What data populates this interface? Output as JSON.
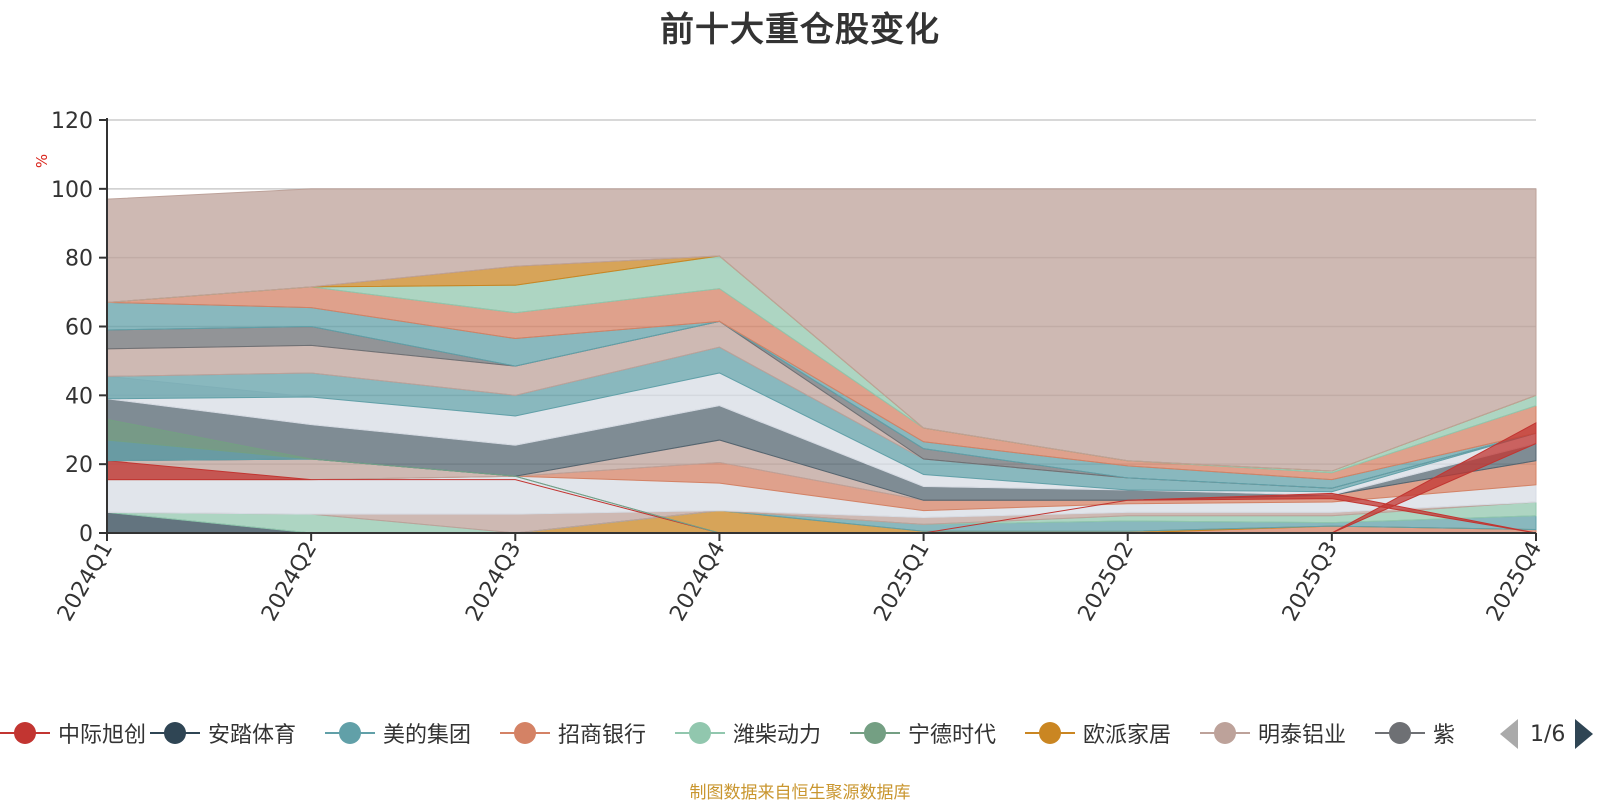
{
  "chart_data": {
    "type": "area",
    "title": "前十大重仓股变化",
    "ylabel": "%",
    "xlabel": "",
    "ylim": [
      0,
      120
    ],
    "yticks": [
      0,
      20,
      40,
      60,
      80,
      100,
      120
    ],
    "categories": [
      "2024Q1",
      "2024Q2",
      "2024Q3",
      "2024Q4",
      "2025Q1",
      "2025Q2",
      "2025Q3",
      "2025Q4"
    ],
    "bands": [
      {
        "color": "#2f4554",
        "lower": [
          0,
          0,
          0,
          0,
          0,
          0,
          0,
          0
        ],
        "upper": [
          6,
          0,
          0,
          0,
          0,
          0,
          0,
          0
        ]
      },
      {
        "color": "#91c7ae",
        "lower": [
          6,
          0,
          0,
          0,
          0,
          0,
          0,
          0
        ],
        "upper": [
          6,
          5.5,
          0,
          0,
          0,
          0,
          0,
          0
        ]
      },
      {
        "color": "#d48265",
        "lower": [
          0,
          0,
          0,
          0,
          0,
          0,
          0,
          0
        ],
        "upper": [
          0,
          0,
          0,
          0,
          0,
          0,
          2,
          1
        ]
      },
      {
        "color": "#ca8622",
        "lower": [
          0,
          0,
          0,
          0,
          0,
          0,
          2,
          1
        ],
        "upper": [
          0,
          0,
          0,
          6.5,
          0.5,
          0.5,
          2,
          1
        ]
      },
      {
        "color": "#61a0a8",
        "lower": [
          0,
          0,
          0,
          6.5,
          0.5,
          0.5,
          2,
          1
        ],
        "upper": [
          0,
          0,
          0,
          6.5,
          2.5,
          3.5,
          3,
          5
        ]
      },
      {
        "color": "#91c7ae",
        "lower": [
          0,
          0,
          0,
          6.5,
          2.5,
          3.5,
          3,
          5
        ],
        "upper": [
          0,
          0,
          0,
          6.5,
          2.5,
          5,
          5,
          9
        ]
      },
      {
        "color": "#bda29a",
        "lower": [
          6,
          5.5,
          0,
          6.5,
          2.5,
          5,
          5,
          9
        ],
        "upper": [
          6,
          5.5,
          5.5,
          6.5,
          4.5,
          6,
          6,
          9
        ]
      },
      {
        "color": "#d7dce4",
        "lower": [
          6,
          5.5,
          5.5,
          6.5,
          4.5,
          6,
          6,
          9
        ],
        "upper": [
          15.5,
          15.5,
          16.5,
          14.5,
          6.5,
          8.5,
          9,
          14
        ]
      },
      {
        "color": "#d48265",
        "lower": [
          15.5,
          15.5,
          16.5,
          14.5,
          6.5,
          8.5,
          9,
          14
        ],
        "upper": [
          15.5,
          15.5,
          16.5,
          20.5,
          9.5,
          9.5,
          11,
          21
        ]
      },
      {
        "color": "#bda29a",
        "lower": [
          15.5,
          15.5,
          16.5,
          20.5,
          9.5,
          9.5,
          11,
          21
        ],
        "upper": [
          21,
          21.5,
          16.5,
          27,
          9.5,
          9.5,
          11,
          21
        ]
      },
      {
        "color": "#546570",
        "lower": [
          21,
          21.5,
          16.5,
          27,
          9.5,
          9.5,
          11,
          21
        ],
        "upper": [
          39,
          31.5,
          25.5,
          37,
          13.5,
          12.5,
          11,
          26
        ]
      },
      {
        "color": "#d7dce4",
        "lower": [
          39,
          31.5,
          25.5,
          37,
          13.5,
          12.5,
          11,
          26
        ],
        "upper": [
          45.5,
          39.5,
          34,
          46.5,
          17,
          12.5,
          12,
          29
        ]
      },
      {
        "color": "#61a0a8",
        "lower": [
          39,
          39.5,
          34,
          46.5,
          17,
          12.5,
          12,
          29
        ],
        "upper": [
          45.5,
          46.5,
          40,
          54,
          21.5,
          16,
          13,
          29
        ]
      },
      {
        "color": "#bda29a",
        "lower": [
          45.5,
          46.5,
          40,
          54,
          21.5,
          16,
          13,
          29
        ],
        "upper": [
          53.5,
          54.5,
          48.5,
          61.5,
          21.5,
          16,
          13,
          29
        ]
      },
      {
        "color": "#6e7074",
        "lower": [
          53.5,
          54.5,
          48.5,
          61.5,
          21.5,
          16,
          13,
          29
        ],
        "upper": [
          59,
          60,
          48.5,
          61.5,
          24.5,
          16,
          13,
          29
        ]
      },
      {
        "color": "#61a0a8",
        "lower": [
          59,
          60,
          48.5,
          61.5,
          24.5,
          16,
          13,
          29
        ],
        "upper": [
          67,
          65.5,
          56.5,
          61.5,
          26.5,
          19.5,
          15.5,
          29
        ]
      },
      {
        "color": "#d48265",
        "lower": [
          67,
          65.5,
          56.5,
          61.5,
          26.5,
          19.5,
          15.5,
          29
        ],
        "upper": [
          67,
          71.5,
          64,
          71,
          30.5,
          21,
          17.5,
          37
        ]
      },
      {
        "color": "#91c7ae",
        "lower": [
          67,
          71.5,
          64,
          71,
          30.5,
          21,
          17.5,
          37
        ],
        "upper": [
          67,
          71.5,
          72,
          80.5,
          30.5,
          21,
          18,
          40
        ]
      },
      {
        "color": "#ca8622",
        "lower": [
          67,
          71.5,
          72,
          80.5,
          30.5,
          21,
          18,
          40
        ],
        "upper": [
          67,
          71.5,
          77.5,
          80.5,
          30.5,
          21,
          18,
          40
        ]
      },
      {
        "color": "#bda29a",
        "lower": [
          67,
          71.5,
          77.5,
          80.5,
          30.5,
          21,
          18,
          40
        ],
        "upper": [
          97,
          100,
          100,
          100,
          100,
          100,
          100,
          100
        ]
      },
      {
        "color": "#c23531",
        "lower": [
          15.5,
          15.5,
          15.5,
          0,
          0,
          0,
          0,
          0
        ],
        "upper": [
          21,
          15.5,
          15.5,
          0,
          0,
          0,
          0,
          0
        ]
      },
      {
        "color": "#61a0a8",
        "lower": [
          21,
          21.5,
          16.5,
          0,
          0,
          0,
          0,
          0
        ],
        "upper": [
          27,
          21.5,
          16.5,
          0,
          0,
          0,
          0,
          0
        ]
      },
      {
        "color": "#749f83",
        "lower": [
          27,
          21.5,
          16.5,
          0,
          0,
          0,
          0,
          0
        ],
        "upper": [
          33,
          21.5,
          16.5,
          0,
          0,
          0,
          0,
          0
        ]
      },
      {
        "color": "#c23531",
        "lower": [
          0,
          0,
          0,
          0,
          0,
          0,
          0,
          26
        ],
        "upper": [
          0,
          0,
          0,
          0,
          0,
          0,
          0,
          32
        ]
      },
      {
        "color": "#c23531",
        "lower": [
          0,
          0,
          0,
          0,
          0,
          9.5,
          10,
          0
        ],
        "upper": [
          0,
          0,
          0,
          0,
          0,
          9.5,
          11.5,
          0
        ]
      }
    ],
    "legend": [
      {
        "name": "中际旭创",
        "color": "#c23531"
      },
      {
        "name": "安踏体育",
        "color": "#2f4554"
      },
      {
        "name": "美的集团",
        "color": "#61a0a8"
      },
      {
        "name": "招商银行",
        "color": "#d48265"
      },
      {
        "name": "潍柴动力",
        "color": "#91c7ae"
      },
      {
        "name": "宁德时代",
        "color": "#749f83"
      },
      {
        "name": "欧派家居",
        "color": "#ca8622"
      },
      {
        "name": "明泰铝业",
        "color": "#bda29a"
      },
      {
        "name": "紫",
        "color": "#6e7074"
      }
    ]
  },
  "pager": {
    "text": "1/6"
  },
  "source": "制图数据来自恒生聚源数据库"
}
